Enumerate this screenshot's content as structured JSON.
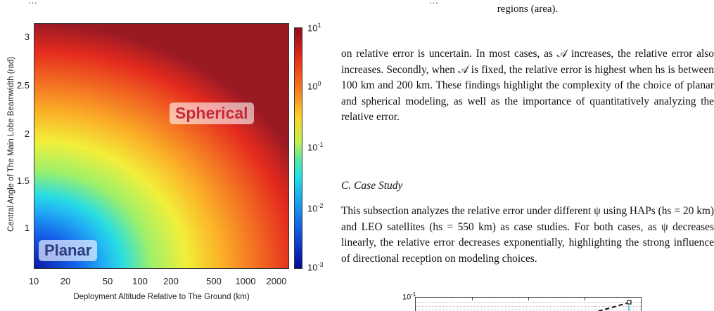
{
  "top_clipped": {
    "left": "…",
    "mid": "…"
  },
  "figure": {
    "ylabel": "Central Angle of The Main Lobe Beamwidth (rad)",
    "xlabel": "Deployment Altitude Relative to The Ground (km)",
    "yticks": [
      "3",
      "2.5",
      "2",
      "1.5",
      "1"
    ],
    "xticks": [
      "10",
      "20",
      "50",
      "100",
      "200",
      "500",
      "1000",
      "2000"
    ],
    "colorbar": {
      "scale": "log",
      "ticks": [
        {
          "base": "10",
          "exp": "1"
        },
        {
          "base": "10",
          "exp": "0"
        },
        {
          "base": "10",
          "exp": "-1"
        },
        {
          "base": "10",
          "exp": "-2"
        },
        {
          "base": "10",
          "exp": "-3"
        }
      ]
    },
    "region_labels": {
      "spherical": "Spherical",
      "planar": "Planar"
    },
    "colors": {
      "low": "#000a96",
      "high": "#8e0f1c"
    }
  },
  "text": {
    "caption_tail": "regions (area).",
    "para1": "on relative error is uncertain. In most cases, as 𝒜 increases, the relative error also increases. Secondly, when 𝒜 is fixed, the relative error is highest when hs is between 100 km and 200 km. These findings highlight the complexity of the choice of planar and spherical modeling, as well as the importance of quantitatively analyzing the relative error.",
    "section_c": "C. Case Study",
    "para2": "This subsection analyzes the relative error under different ψ using HAPs (hs = 20 km) and LEO satellites (hs = 550 km) as case studies. For both cases, as ψ decreases linearly, the relative error decreases exponentially, highlighting the strong influence of directional reception on modeling choices."
  },
  "mini_plot": {
    "ytick": {
      "base": "10",
      "exp": "-1"
    }
  }
}
